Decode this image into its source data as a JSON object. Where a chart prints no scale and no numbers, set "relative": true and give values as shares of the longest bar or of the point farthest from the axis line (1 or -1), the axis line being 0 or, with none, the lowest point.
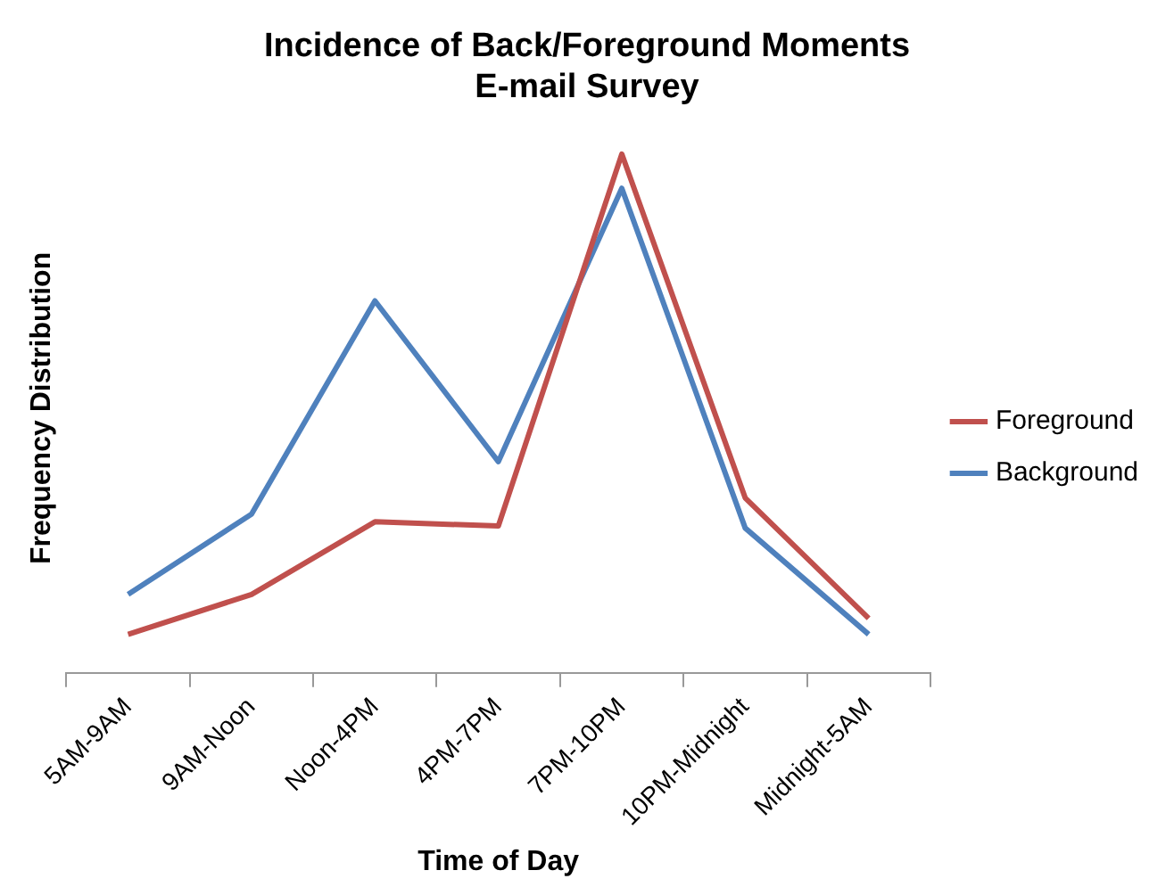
{
  "chart_data": {
    "type": "line",
    "title": "Incidence of Back/Foreground Moments",
    "subtitle": "E-mail Survey",
    "xlabel": "Time of Day",
    "ylabel": "Frequency Distribution",
    "relative": true,
    "categories": [
      "5AM-9AM",
      "9AM-Noon",
      "Noon-4PM",
      "4PM-7PM",
      "7PM-10PM",
      "10PM-Midnight",
      "Midnight-5AM"
    ],
    "series": [
      {
        "name": "Foreground",
        "color": "#c0504d",
        "values": [
          0.074,
          0.151,
          0.291,
          0.283,
          1,
          0.337,
          0.105
        ]
      },
      {
        "name": "Background",
        "color": "#4f81bd",
        "values": [
          0.151,
          0.306,
          0.717,
          0.407,
          0.934,
          0.279,
          0.074
        ]
      }
    ],
    "legend": "right",
    "grid": false,
    "marker": "none",
    "line_style": "solid"
  }
}
